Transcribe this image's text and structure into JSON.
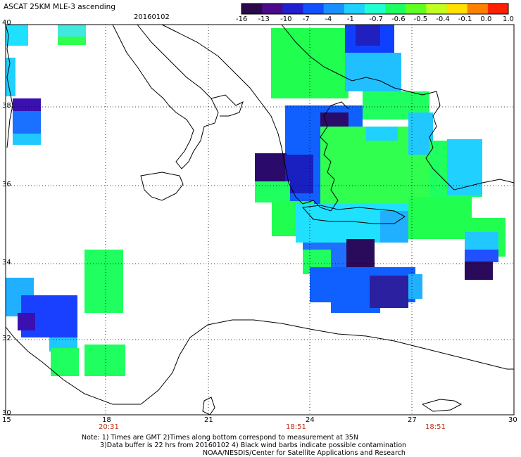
{
  "header": {
    "title": "ASCAT 25KM MLE-3 ascending",
    "date": "20160102"
  },
  "colorbar": {
    "labels": [
      "-16",
      "-13",
      "-10",
      "-7",
      "-4",
      "-1",
      "-0.7",
      "-0.6",
      "-0.5",
      "-0.4",
      "-0.1",
      "0.0",
      "1.0"
    ],
    "colors": [
      "#2a0a4a",
      "#4a0a8a",
      "#2020d0",
      "#1050ff",
      "#1890ff",
      "#20d0ff",
      "#20ffd0",
      "#20ff60",
      "#60ff20",
      "#c0ff20",
      "#ffe000",
      "#ff8000",
      "#ff2000"
    ]
  },
  "axes": {
    "lon_labels": [
      "15",
      "18",
      "21",
      "24",
      "27",
      "30"
    ],
    "lat_labels": [
      "40",
      "38",
      "36",
      "34",
      "32",
      "30"
    ]
  },
  "times": [
    "20:31",
    "18:51",
    "18:51"
  ],
  "notes": {
    "line1": "Note: 1) Times are GMT 2)Times along bottom correspond to measurement at 35N",
    "line2": "3)Data buffer is 22 hrs from 20160102 4) Black wind barbs indicate possible contamination",
    "line3": "NOAA/NESDIS/Center for Satellite Applications and Research"
  }
}
